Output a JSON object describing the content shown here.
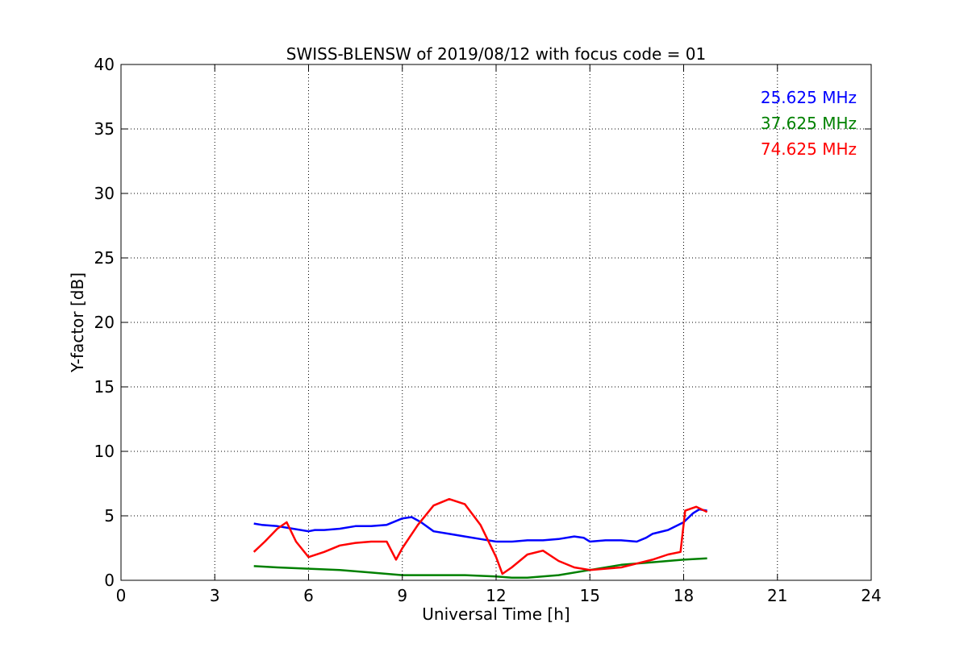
{
  "chart_data": {
    "type": "line",
    "title": "SWISS-BLENSW of 2019/08/12 with focus code = 01",
    "xlabel": "Universal Time [h]",
    "ylabel": "Y-factor [dB]",
    "xlim": [
      0,
      24
    ],
    "ylim": [
      0,
      40
    ],
    "xticks": [
      "0",
      "3",
      "6",
      "9",
      "12",
      "15",
      "18",
      "21",
      "24"
    ],
    "yticks": [
      "0",
      "5",
      "10",
      "15",
      "20",
      "25",
      "30",
      "35",
      "40"
    ],
    "grid": true,
    "legend_position": "top-right",
    "series": [
      {
        "name": "25.625 MHz",
        "color": "#0000ff",
        "x": [
          4.25,
          4.5,
          5.0,
          5.5,
          6.0,
          6.2,
          6.5,
          7.0,
          7.5,
          8.0,
          8.5,
          9.0,
          9.3,
          9.6,
          10.0,
          10.5,
          11.0,
          11.5,
          12.0,
          12.5,
          13.0,
          13.5,
          14.0,
          14.5,
          14.8,
          15.0,
          15.5,
          16.0,
          16.5,
          16.8,
          17.0,
          17.5,
          18.0,
          18.3,
          18.5,
          18.75
        ],
        "y": [
          4.4,
          4.3,
          4.2,
          4.0,
          3.8,
          3.9,
          3.9,
          4.0,
          4.2,
          4.2,
          4.3,
          4.8,
          4.9,
          4.5,
          3.8,
          3.6,
          3.4,
          3.2,
          3.0,
          3.0,
          3.1,
          3.1,
          3.2,
          3.4,
          3.3,
          3.0,
          3.1,
          3.1,
          3.0,
          3.3,
          3.6,
          3.9,
          4.5,
          5.2,
          5.5,
          5.4
        ]
      },
      {
        "name": "37.625 MHz",
        "color": "#008000",
        "x": [
          4.25,
          5.0,
          6.0,
          7.0,
          8.0,
          9.0,
          10.0,
          11.0,
          12.0,
          12.5,
          13.0,
          14.0,
          15.0,
          16.0,
          17.0,
          18.0,
          18.75
        ],
        "y": [
          1.1,
          1.0,
          0.9,
          0.8,
          0.6,
          0.4,
          0.4,
          0.4,
          0.3,
          0.2,
          0.2,
          0.4,
          0.8,
          1.2,
          1.4,
          1.6,
          1.7
        ]
      },
      {
        "name": "74.625 MHz",
        "color": "#ff0000",
        "x": [
          4.25,
          4.6,
          5.0,
          5.3,
          5.6,
          6.0,
          6.5,
          7.0,
          7.5,
          8.0,
          8.5,
          8.8,
          9.0,
          9.5,
          10.0,
          10.5,
          11.0,
          11.5,
          12.0,
          12.2,
          12.5,
          13.0,
          13.5,
          14.0,
          14.5,
          15.0,
          15.5,
          16.0,
          16.5,
          17.0,
          17.5,
          17.9,
          18.05,
          18.4,
          18.75
        ],
        "y": [
          2.2,
          3.0,
          4.0,
          4.5,
          3.0,
          1.8,
          2.2,
          2.7,
          2.9,
          3.0,
          3.0,
          1.6,
          2.5,
          4.3,
          5.8,
          6.3,
          5.9,
          4.3,
          1.8,
          0.5,
          1.0,
          2.0,
          2.3,
          1.5,
          1.0,
          0.8,
          0.9,
          1.0,
          1.3,
          1.6,
          2.0,
          2.2,
          5.4,
          5.7,
          5.3
        ]
      }
    ]
  }
}
